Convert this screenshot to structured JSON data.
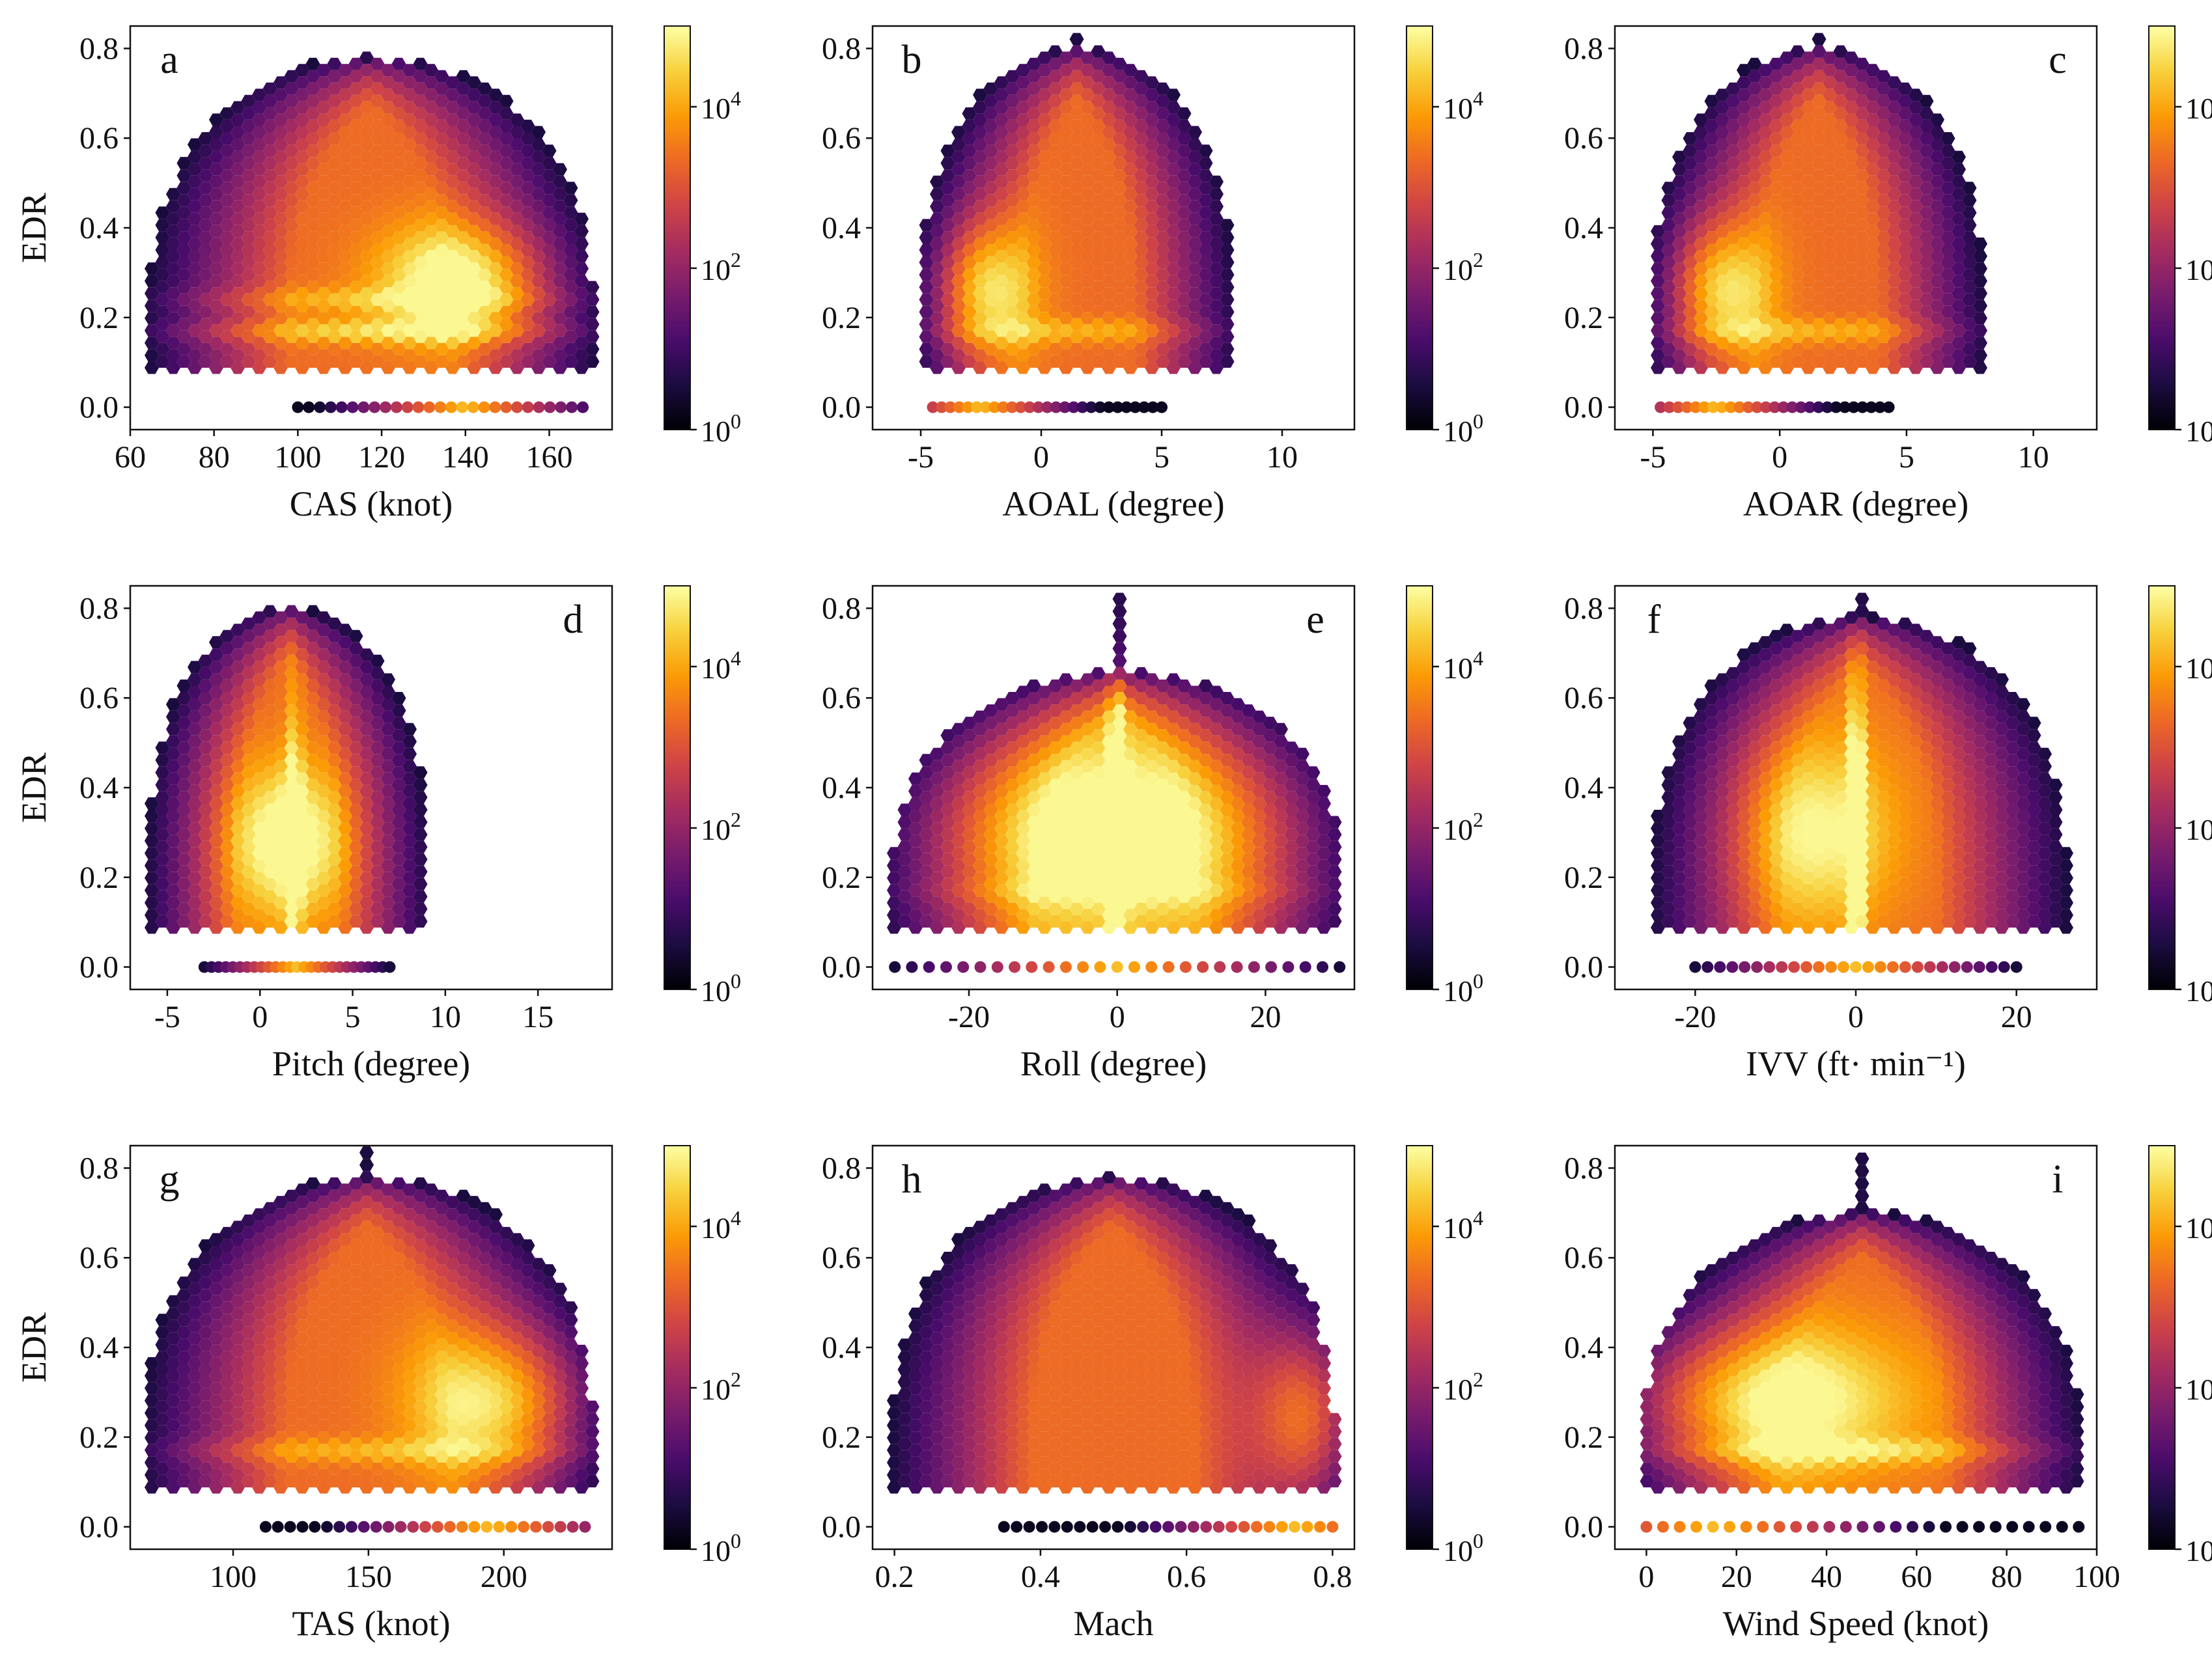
{
  "figure": {
    "colormap": "inferno",
    "colorbar_ticks": [
      {
        "base": "10",
        "exp": "0"
      },
      {
        "base": "10",
        "exp": "2"
      },
      {
        "base": "10",
        "exp": "4"
      }
    ]
  },
  "chart_data": [
    {
      "type": "heatmap",
      "subtype": "hexbin",
      "panel": "a",
      "xlabel": "CAS (knot)",
      "ylabel": "EDR",
      "xlim": [
        60,
        175
      ],
      "ylim": [
        -0.05,
        0.85
      ],
      "xticks": [
        {
          "v": 60,
          "label": "60"
        },
        {
          "v": 80,
          "label": "80"
        },
        {
          "v": 100,
          "label": "100"
        },
        {
          "v": 120,
          "label": "120"
        },
        {
          "v": 140,
          "label": "140"
        },
        {
          "v": 160,
          "label": "160"
        }
      ],
      "yticks": [
        {
          "v": 0,
          "label": "0.0"
        },
        {
          "v": 0.2,
          "label": "0.2"
        },
        {
          "v": 0.4,
          "label": "0.4"
        },
        {
          "v": 0.6,
          "label": "0.6"
        },
        {
          "v": 0.8,
          "label": "0.8"
        }
      ],
      "color_scale": "log",
      "color_range": [
        1,
        100000
      ],
      "hotspots": [
        {
          "x": 140,
          "y": 0.28,
          "sx": 14,
          "sy": 0.09,
          "w": 1.0
        }
      ],
      "vlines": [],
      "hlines": [
        {
          "y": 0.17,
          "w": 0.5
        },
        {
          "y": 0.24,
          "w": 0.35
        }
      ],
      "envelope_x_range": [
        65,
        170
      ],
      "envelope_y_max": 0.78,
      "zero_row": {
        "x_min": 100,
        "x_max": 168,
        "peak_x": 140
      }
    },
    {
      "type": "heatmap",
      "subtype": "hexbin",
      "panel": "b",
      "xlabel": "AOAL (degree)",
      "ylabel": "",
      "xlim": [
        -7,
        13
      ],
      "ylim": [
        -0.05,
        0.85
      ],
      "xticks": [
        {
          "v": -5,
          "label": "-5"
        },
        {
          "v": 0,
          "label": "0"
        },
        {
          "v": 5,
          "label": "5"
        },
        {
          "v": 10,
          "label": "10"
        }
      ],
      "yticks": [
        {
          "v": 0,
          "label": "0.0"
        },
        {
          "v": 0.2,
          "label": "0.2"
        },
        {
          "v": 0.4,
          "label": "0.4"
        },
        {
          "v": 0.6,
          "label": "0.6"
        },
        {
          "v": 0.8,
          "label": "0.8"
        }
      ],
      "color_scale": "log",
      "color_range": [
        1,
        100000
      ],
      "hotspots": [
        {
          "x": -2.5,
          "y": 0.26,
          "sx": 1.4,
          "sy": 0.11,
          "w": 1.0
        }
      ],
      "vlines": [],
      "hlines": [
        {
          "y": 0.17,
          "w": 0.35
        }
      ],
      "envelope_x_range": [
        -5,
        8
      ],
      "envelope_y_max": 0.8,
      "zero_row": {
        "x_min": -4.5,
        "x_max": 5,
        "peak_x": -2.5
      }
    },
    {
      "type": "heatmap",
      "subtype": "hexbin",
      "panel": "c",
      "xlabel": "AOAR (degree)",
      "ylabel": "",
      "xlim": [
        -6.5,
        12.5
      ],
      "ylim": [
        -0.05,
        0.85
      ],
      "xticks": [
        {
          "v": -5,
          "label": "-5"
        },
        {
          "v": 0,
          "label": "0"
        },
        {
          "v": 5,
          "label": "5"
        },
        {
          "v": 10,
          "label": "10"
        }
      ],
      "yticks": [
        {
          "v": 0,
          "label": "0.0"
        },
        {
          "v": 0.2,
          "label": "0.2"
        },
        {
          "v": 0.4,
          "label": "0.4"
        },
        {
          "v": 0.6,
          "label": "0.6"
        },
        {
          "v": 0.8,
          "label": "0.8"
        }
      ],
      "color_scale": "log",
      "color_range": [
        1,
        100000
      ],
      "hotspots": [
        {
          "x": -2.5,
          "y": 0.26,
          "sx": 1.4,
          "sy": 0.11,
          "w": 1.0
        }
      ],
      "vlines": [],
      "hlines": [
        {
          "y": 0.17,
          "w": 0.35
        }
      ],
      "envelope_x_range": [
        -5,
        8
      ],
      "envelope_y_max": 0.8,
      "zero_row": {
        "x_min": -4.7,
        "x_max": 4.3,
        "peak_x": -2.5
      }
    },
    {
      "type": "heatmap",
      "subtype": "hexbin",
      "panel": "d",
      "xlabel": "Pitch (degree)",
      "ylabel": "EDR",
      "xlim": [
        -7,
        19
      ],
      "ylim": [
        -0.05,
        0.85
      ],
      "xticks": [
        {
          "v": -5,
          "label": "-5"
        },
        {
          "v": 0,
          "label": "0"
        },
        {
          "v": 5,
          "label": "5"
        },
        {
          "v": 10,
          "label": "10"
        },
        {
          "v": 15,
          "label": "15"
        }
      ],
      "yticks": [
        {
          "v": 0,
          "label": "0.0"
        },
        {
          "v": 0.2,
          "label": "0.2"
        },
        {
          "v": 0.4,
          "label": "0.4"
        },
        {
          "v": 0.6,
          "label": "0.6"
        },
        {
          "v": 0.8,
          "label": "0.8"
        }
      ],
      "color_scale": "log",
      "color_range": [
        1,
        100000
      ],
      "hotspots": [
        {
          "x": 1.5,
          "y": 0.28,
          "sx": 2.3,
          "sy": 0.12,
          "w": 0.9
        }
      ],
      "vlines": [
        {
          "x": 1.8,
          "w": 0.6
        }
      ],
      "hlines": [],
      "envelope_x_range": [
        -6,
        9
      ],
      "envelope_y_max": 0.8,
      "zero_row": {
        "x_min": -3,
        "x_max": 7,
        "peak_x": 2
      }
    },
    {
      "type": "heatmap",
      "subtype": "hexbin",
      "panel": "e",
      "xlabel": "Roll (degree)",
      "ylabel": "",
      "xlim": [
        -33,
        32
      ],
      "ylim": [
        -0.05,
        0.85
      ],
      "xticks": [
        {
          "v": -20,
          "label": "-20"
        },
        {
          "v": 0,
          "label": "0"
        },
        {
          "v": 20,
          "label": "20"
        }
      ],
      "yticks": [
        {
          "v": 0,
          "label": "0.0"
        },
        {
          "v": 0.2,
          "label": "0.2"
        },
        {
          "v": 0.4,
          "label": "0.4"
        },
        {
          "v": 0.6,
          "label": "0.6"
        },
        {
          "v": 0.8,
          "label": "0.8"
        }
      ],
      "color_scale": "log",
      "color_range": [
        1,
        100000
      ],
      "hotspots": [
        {
          "x": -10,
          "y": 0.3,
          "sx": 14,
          "sy": 0.17,
          "w": 0.62
        },
        {
          "x": 10,
          "y": 0.3,
          "sx": 14,
          "sy": 0.17,
          "w": 0.55
        }
      ],
      "vlines": [
        {
          "x": 0,
          "w": 1.0
        }
      ],
      "hlines": [
        {
          "y": 0.17,
          "w": 0.2
        }
      ],
      "envelope_x_range": [
        -30,
        30
      ],
      "envelope_y_max": 0.66,
      "zero_row": {
        "x_min": -30,
        "x_max": 30,
        "peak_x": 0
      }
    },
    {
      "type": "heatmap",
      "subtype": "hexbin",
      "panel": "f",
      "xlabel": "IVV (ft· min⁻¹)",
      "ylabel": "",
      "xlim": [
        -30,
        30
      ],
      "ylim": [
        -0.05,
        0.85
      ],
      "xticks": [
        {
          "v": -20,
          "label": "-20"
        },
        {
          "v": 0,
          "label": "0"
        },
        {
          "v": 20,
          "label": "20"
        }
      ],
      "yticks": [
        {
          "v": 0,
          "label": "0.0"
        },
        {
          "v": 0.2,
          "label": "0.2"
        },
        {
          "v": 0.4,
          "label": "0.4"
        },
        {
          "v": 0.6,
          "label": "0.6"
        },
        {
          "v": 0.8,
          "label": "0.8"
        }
      ],
      "color_scale": "log",
      "color_range": [
        1,
        100000
      ],
      "hotspots": [
        {
          "x": -5,
          "y": 0.3,
          "sx": 7,
          "sy": 0.15,
          "w": 0.72
        }
      ],
      "vlines": [
        {
          "x": 0,
          "w": 1.0
        }
      ],
      "hlines": [],
      "envelope_x_range": [
        -25,
        26
      ],
      "envelope_y_max": 0.78,
      "zero_row": {
        "x_min": -20,
        "x_max": 20,
        "peak_x": 0
      }
    },
    {
      "type": "heatmap",
      "subtype": "hexbin",
      "panel": "g",
      "xlabel": "TAS (knot)",
      "ylabel": "EDR",
      "xlim": [
        62,
        240
      ],
      "ylim": [
        -0.05,
        0.85
      ],
      "xticks": [
        {
          "v": 100,
          "label": "100"
        },
        {
          "v": 150,
          "label": "150"
        },
        {
          "v": 200,
          "label": "200"
        }
      ],
      "yticks": [
        {
          "v": 0,
          "label": "0.0"
        },
        {
          "v": 0.2,
          "label": "0.2"
        },
        {
          "v": 0.4,
          "label": "0.4"
        },
        {
          "v": 0.6,
          "label": "0.6"
        },
        {
          "v": 0.8,
          "label": "0.8"
        }
      ],
      "color_scale": "log",
      "color_range": [
        1,
        100000
      ],
      "hotspots": [
        {
          "x": 200,
          "y": 0.28,
          "sx": 22,
          "sy": 0.12,
          "w": 1.0
        }
      ],
      "vlines": [],
      "hlines": [
        {
          "y": 0.17,
          "w": 0.35
        }
      ],
      "envelope_x_range": [
        68,
        232
      ],
      "envelope_y_max": 0.78,
      "zero_row": {
        "x_min": 112,
        "x_max": 230,
        "peak_x": 195
      }
    },
    {
      "type": "heatmap",
      "subtype": "hexbin",
      "panel": "h",
      "xlabel": "Mach",
      "ylabel": "",
      "xlim": [
        0.17,
        0.83
      ],
      "ylim": [
        -0.05,
        0.85
      ],
      "xticks": [
        {
          "v": 0.2,
          "label": "0.2"
        },
        {
          "v": 0.4,
          "label": "0.4"
        },
        {
          "v": 0.6,
          "label": "0.6"
        },
        {
          "v": 0.8,
          "label": "0.8"
        }
      ],
      "yticks": [
        {
          "v": 0,
          "label": "0.0"
        },
        {
          "v": 0.2,
          "label": "0.2"
        },
        {
          "v": 0.4,
          "label": "0.4"
        },
        {
          "v": 0.6,
          "label": "0.6"
        },
        {
          "v": 0.8,
          "label": "0.8"
        }
      ],
      "color_scale": "log",
      "color_range": [
        1,
        100000
      ],
      "hotspots": [
        {
          "x": 0.77,
          "y": 0.25,
          "sx": 0.05,
          "sy": 0.14,
          "w": 1.0
        }
      ],
      "vlines": [],
      "hlines": [],
      "envelope_x_range": [
        0.2,
        0.8
      ],
      "envelope_y_max": 0.78,
      "zero_row": {
        "x_min": 0.35,
        "x_max": 0.8,
        "peak_x": 0.75
      }
    },
    {
      "type": "heatmap",
      "subtype": "hexbin",
      "panel": "i",
      "xlabel": "Wind Speed (knot)",
      "ylabel": "",
      "xlim": [
        -7,
        100
      ],
      "ylim": [
        -0.05,
        0.85
      ],
      "xticks": [
        {
          "v": 0,
          "label": "0"
        },
        {
          "v": 20,
          "label": "20"
        },
        {
          "v": 40,
          "label": "40"
        },
        {
          "v": 60,
          "label": "60"
        },
        {
          "v": 80,
          "label": "80"
        },
        {
          "v": 100,
          "label": "100"
        }
      ],
      "yticks": [
        {
          "v": 0,
          "label": "0.0"
        },
        {
          "v": 0.2,
          "label": "0.2"
        },
        {
          "v": 0.4,
          "label": "0.4"
        },
        {
          "v": 0.6,
          "label": "0.6"
        },
        {
          "v": 0.8,
          "label": "0.8"
        }
      ],
      "color_scale": "log",
      "color_range": [
        1,
        100000
      ],
      "hotspots": [
        {
          "x": 22,
          "y": 0.28,
          "sx": 24,
          "sy": 0.12,
          "w": 1.0
        }
      ],
      "vlines": [],
      "hlines": [
        {
          "y": 0.17,
          "w": 0.4
        }
      ],
      "envelope_x_range": [
        0,
        96
      ],
      "envelope_y_max": 0.7,
      "zero_row": {
        "x_min": 0,
        "x_max": 96,
        "peak_x": 15
      }
    }
  ]
}
